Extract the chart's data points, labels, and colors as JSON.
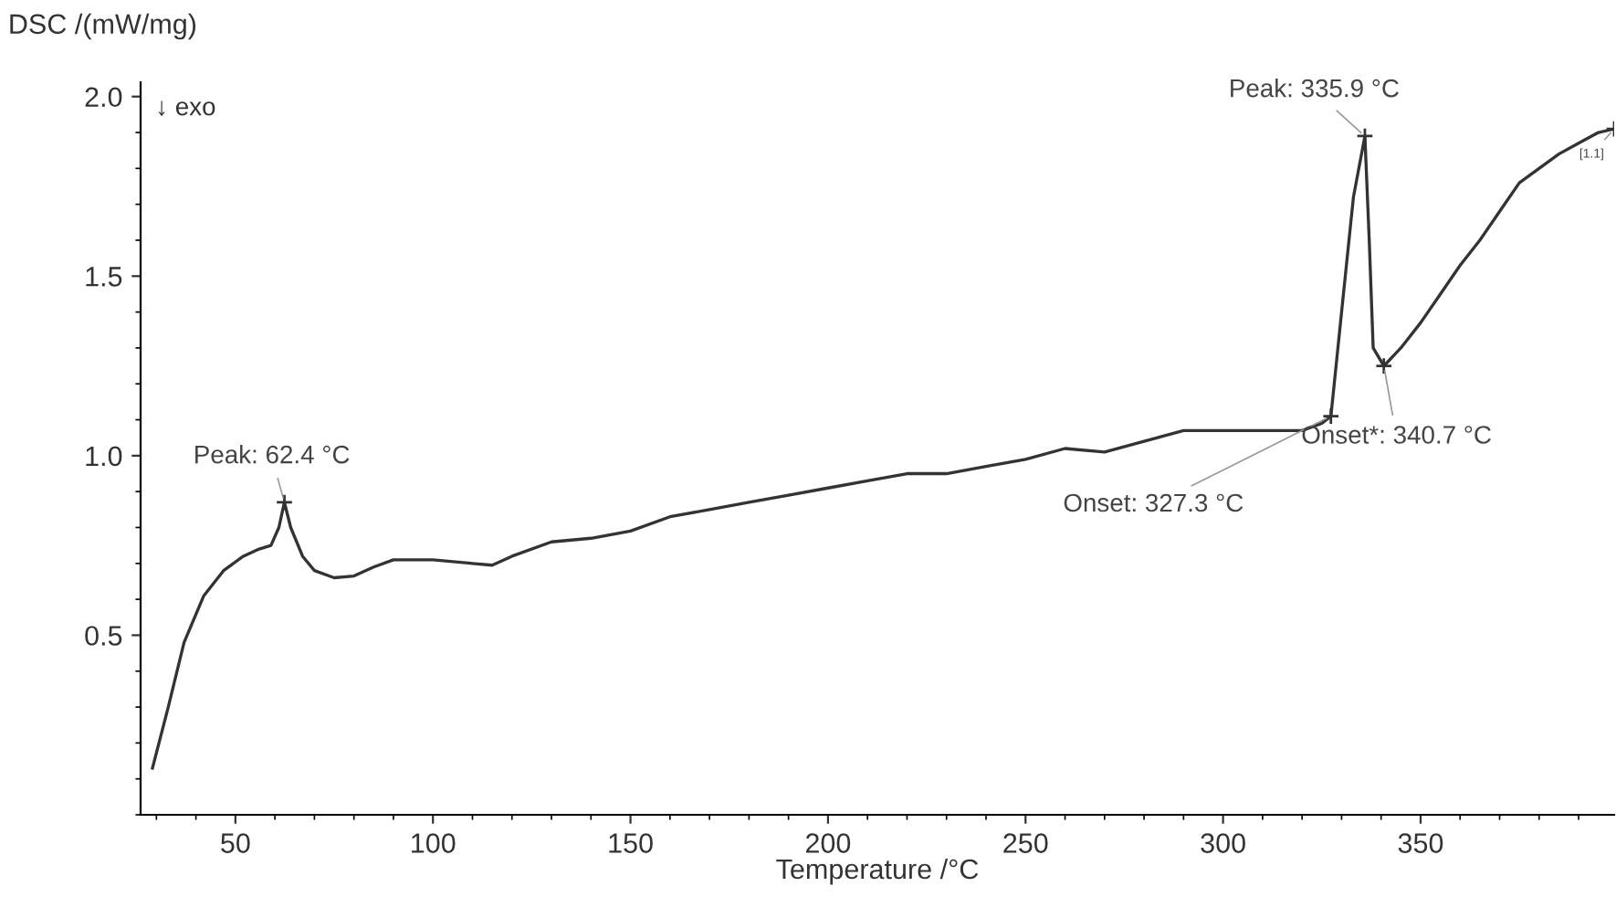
{
  "chart_data": {
    "type": "line",
    "xlabel": "Temperature /°C",
    "ylabel": "DSC /(mW/mg)",
    "x": [
      29,
      33,
      37,
      42,
      47,
      52,
      56,
      59,
      61,
      62.4,
      64,
      67,
      70,
      75,
      80,
      85,
      90,
      100,
      110,
      115,
      120,
      130,
      140,
      150,
      160,
      170,
      180,
      190,
      200,
      210,
      220,
      230,
      240,
      250,
      260,
      270,
      280,
      290,
      300,
      310,
      320,
      325,
      327.3,
      330,
      333,
      335.9,
      337,
      338,
      340.7,
      345,
      350,
      355,
      360,
      365,
      370,
      375,
      380,
      385,
      390,
      395,
      399
    ],
    "series": [
      {
        "color": "#333333",
        "values": [
          0.13,
          0.3,
          0.48,
          0.61,
          0.68,
          0.72,
          0.74,
          0.75,
          0.8,
          0.87,
          0.8,
          0.72,
          0.68,
          0.66,
          0.665,
          0.69,
          0.71,
          0.71,
          0.7,
          0.695,
          0.72,
          0.76,
          0.77,
          0.79,
          0.83,
          0.85,
          0.87,
          0.89,
          0.91,
          0.93,
          0.95,
          0.95,
          0.97,
          0.99,
          1.02,
          1.01,
          1.04,
          1.07,
          1.07,
          1.07,
          1.07,
          1.09,
          1.11,
          1.4,
          1.72,
          1.89,
          1.6,
          1.3,
          1.25,
          1.3,
          1.37,
          1.45,
          1.53,
          1.6,
          1.68,
          1.76,
          1.8,
          1.84,
          1.87,
          1.9,
          1.91
        ]
      }
    ],
    "xlim": [
      26,
      399
    ],
    "ylim": [
      0,
      2.04
    ],
    "xticks": [
      50,
      100,
      150,
      200,
      250,
      300,
      350
    ],
    "yticks": [
      0.5,
      {
        "value": 1,
        "label": "1.0"
      },
      1.5,
      {
        "value": 2,
        "label": "2.0"
      }
    ],
    "grid": false,
    "legend": false,
    "marker": "none",
    "line_style": "solid",
    "annotations": [
      "↓ exo",
      {
        "text": "Peak: 62.4 °C",
        "x": 62.4,
        "y": 0.87
      },
      {
        "text": "Peak: 335.9 °C",
        "x": 335.9,
        "y": 1.89
      },
      {
        "text": "Onset: 327.3 °C",
        "x": 327.3,
        "y": 1.11
      },
      {
        "text": "Onset*: 340.7 °C",
        "x": 340.7,
        "y": 1.25
      },
      {
        "text": "[1.1]",
        "x": 399,
        "y": 1.91
      }
    ]
  }
}
